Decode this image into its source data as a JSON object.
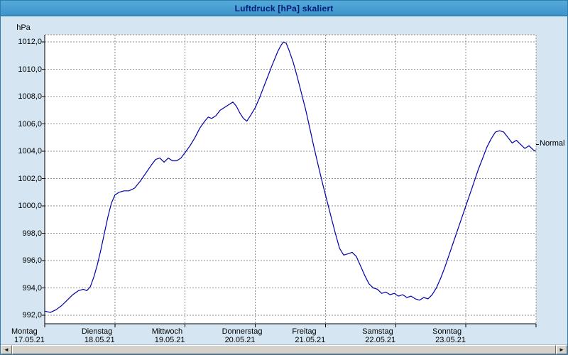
{
  "window": {
    "title": "Luftdruck [hPa] skaliert"
  },
  "chart_data": {
    "type": "line",
    "title": "Luftdruck [hPa] skaliert",
    "grid": "dashed",
    "plot_background": "#ffffff",
    "y_axis": {
      "unit_label": "hPa",
      "min": 992,
      "max": 1012,
      "tick_step": 2,
      "tick_labels": [
        "1012,0",
        "1010,0",
        "1008,0",
        "1006,0",
        "1004,0",
        "1002,0",
        "1000,0",
        "998,0",
        "996,0",
        "994,0",
        "992,0"
      ]
    },
    "x_axis": {
      "span_days": 7,
      "days": [
        {
          "name": "Montag",
          "date": "17.05.21"
        },
        {
          "name": "Dienstag",
          "date": "18.05.21"
        },
        {
          "name": "Mittwoch",
          "date": "19.05.21"
        },
        {
          "name": "Donnerstag",
          "date": "20.05.21"
        },
        {
          "name": "Freitag",
          "date": "21.05.21"
        },
        {
          "name": "Samstag",
          "date": "22.05.21"
        },
        {
          "name": "Sonntag",
          "date": "23.05.21"
        }
      ]
    },
    "series": [
      {
        "name": "Luftdruck",
        "color": "#0000a8",
        "points": [
          [
            0.0,
            992.3
          ],
          [
            0.08,
            992.2
          ],
          [
            0.16,
            992.4
          ],
          [
            0.24,
            992.7
          ],
          [
            0.32,
            993.1
          ],
          [
            0.4,
            993.5
          ],
          [
            0.48,
            993.8
          ],
          [
            0.55,
            993.9
          ],
          [
            0.6,
            993.8
          ],
          [
            0.65,
            994.1
          ],
          [
            0.7,
            994.8
          ],
          [
            0.75,
            995.7
          ],
          [
            0.8,
            996.8
          ],
          [
            0.85,
            998.0
          ],
          [
            0.9,
            999.2
          ],
          [
            0.95,
            1000.2
          ],
          [
            1.0,
            1000.8
          ],
          [
            1.06,
            1001.0
          ],
          [
            1.13,
            1001.1
          ],
          [
            1.2,
            1001.1
          ],
          [
            1.28,
            1001.3
          ],
          [
            1.36,
            1001.8
          ],
          [
            1.44,
            1002.4
          ],
          [
            1.52,
            1003.0
          ],
          [
            1.58,
            1003.4
          ],
          [
            1.64,
            1003.5
          ],
          [
            1.7,
            1003.2
          ],
          [
            1.76,
            1003.5
          ],
          [
            1.82,
            1003.3
          ],
          [
            1.88,
            1003.3
          ],
          [
            1.94,
            1003.5
          ],
          [
            2.0,
            1003.9
          ],
          [
            2.07,
            1004.4
          ],
          [
            2.14,
            1005.0
          ],
          [
            2.21,
            1005.7
          ],
          [
            2.28,
            1006.2
          ],
          [
            2.33,
            1006.5
          ],
          [
            2.38,
            1006.4
          ],
          [
            2.44,
            1006.6
          ],
          [
            2.5,
            1007.0
          ],
          [
            2.56,
            1007.2
          ],
          [
            2.62,
            1007.4
          ],
          [
            2.68,
            1007.6
          ],
          [
            2.73,
            1007.3
          ],
          [
            2.78,
            1006.8
          ],
          [
            2.83,
            1006.4
          ],
          [
            2.88,
            1006.2
          ],
          [
            2.93,
            1006.6
          ],
          [
            3.0,
            1007.2
          ],
          [
            3.06,
            1007.9
          ],
          [
            3.12,
            1008.7
          ],
          [
            3.18,
            1009.5
          ],
          [
            3.24,
            1010.3
          ],
          [
            3.28,
            1010.8
          ],
          [
            3.32,
            1011.3
          ],
          [
            3.36,
            1011.7
          ],
          [
            3.4,
            1012.0
          ],
          [
            3.44,
            1011.9
          ],
          [
            3.48,
            1011.4
          ],
          [
            3.54,
            1010.5
          ],
          [
            3.6,
            1009.4
          ],
          [
            3.66,
            1008.2
          ],
          [
            3.72,
            1007.0
          ],
          [
            3.78,
            1005.6
          ],
          [
            3.84,
            1004.2
          ],
          [
            3.9,
            1002.9
          ],
          [
            3.96,
            1001.6
          ],
          [
            4.02,
            1000.4
          ],
          [
            4.08,
            999.2
          ],
          [
            4.14,
            998.0
          ],
          [
            4.2,
            996.9
          ],
          [
            4.26,
            996.4
          ],
          [
            4.32,
            996.5
          ],
          [
            4.38,
            996.6
          ],
          [
            4.44,
            996.3
          ],
          [
            4.5,
            995.6
          ],
          [
            4.56,
            994.9
          ],
          [
            4.62,
            994.3
          ],
          [
            4.68,
            994.0
          ],
          [
            4.74,
            993.9
          ],
          [
            4.8,
            993.6
          ],
          [
            4.86,
            993.7
          ],
          [
            4.92,
            993.5
          ],
          [
            4.98,
            993.6
          ],
          [
            5.04,
            993.4
          ],
          [
            5.1,
            993.5
          ],
          [
            5.16,
            993.3
          ],
          [
            5.22,
            993.4
          ],
          [
            5.28,
            993.2
          ],
          [
            5.34,
            993.1
          ],
          [
            5.4,
            993.3
          ],
          [
            5.46,
            993.2
          ],
          [
            5.52,
            993.5
          ],
          [
            5.58,
            994.0
          ],
          [
            5.64,
            994.7
          ],
          [
            5.7,
            995.5
          ],
          [
            5.76,
            996.4
          ],
          [
            5.82,
            997.3
          ],
          [
            5.88,
            998.2
          ],
          [
            5.94,
            999.1
          ],
          [
            6.0,
            1000.0
          ],
          [
            6.06,
            1000.9
          ],
          [
            6.12,
            1001.8
          ],
          [
            6.18,
            1002.7
          ],
          [
            6.24,
            1003.5
          ],
          [
            6.3,
            1004.3
          ],
          [
            6.36,
            1004.9
          ],
          [
            6.42,
            1005.4
          ],
          [
            6.48,
            1005.5
          ],
          [
            6.54,
            1005.4
          ],
          [
            6.6,
            1005.0
          ],
          [
            6.66,
            1004.6
          ],
          [
            6.72,
            1004.8
          ],
          [
            6.78,
            1004.5
          ],
          [
            6.84,
            1004.2
          ],
          [
            6.9,
            1004.4
          ],
          [
            6.96,
            1004.1
          ],
          [
            7.0,
            1004.0
          ]
        ]
      }
    ],
    "annotations": [
      {
        "label": "Normal",
        "value": 1004.5
      }
    ]
  },
  "scrollbar": {
    "left_arrow": "◄",
    "right_arrow": "►"
  }
}
